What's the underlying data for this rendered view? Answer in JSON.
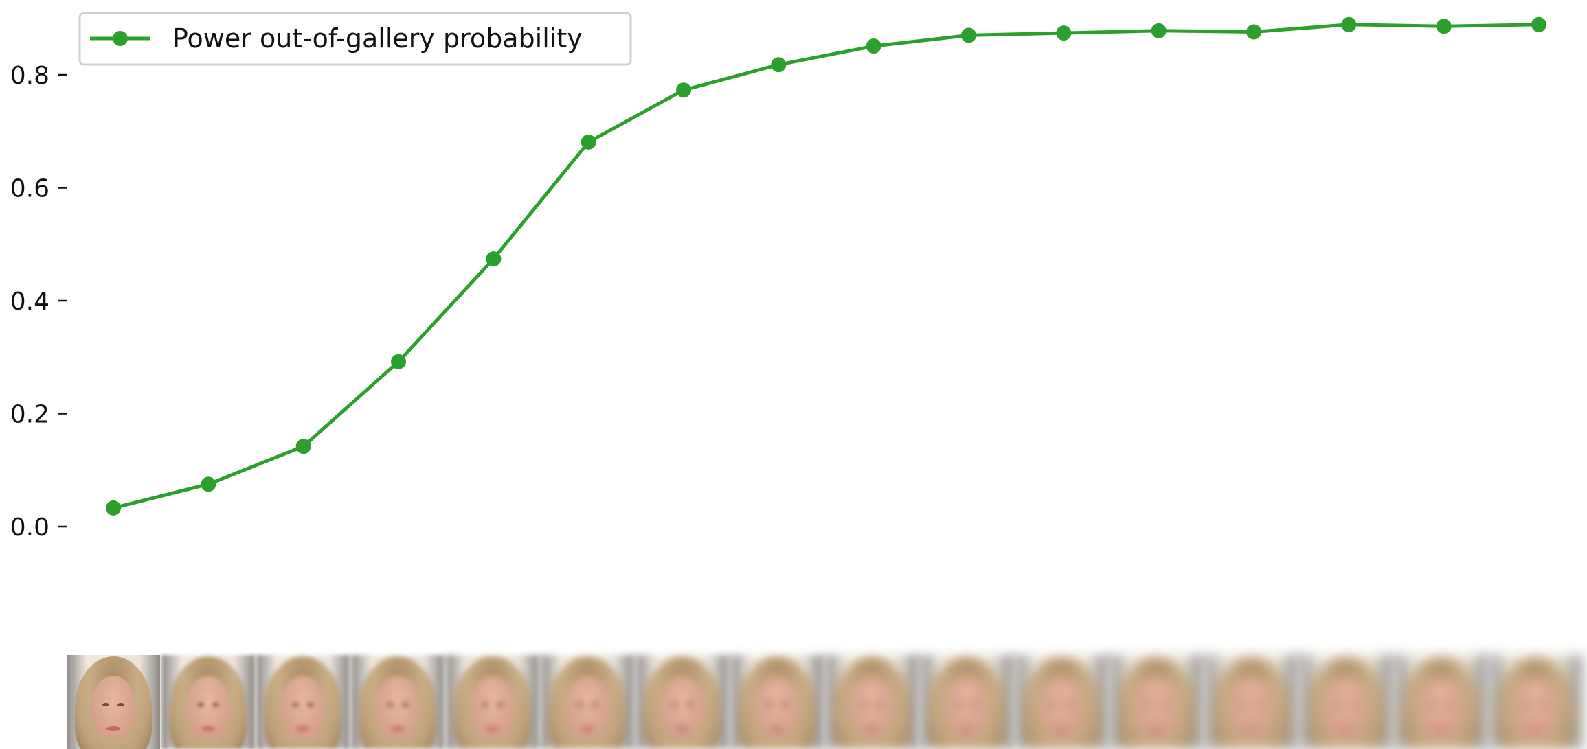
{
  "chart_data": {
    "type": "line",
    "title": "",
    "xlabel": "",
    "ylabel": "",
    "ylim": [
      -0.06,
      0.9
    ],
    "yticks": [
      0.0,
      0.2,
      0.4,
      0.6,
      0.8
    ],
    "ytick_labels": [
      "0.0",
      "0.2",
      "0.4",
      "0.6",
      "0.8"
    ],
    "x": [
      1,
      2,
      3,
      4,
      5,
      6,
      7,
      8,
      9,
      10,
      11,
      12,
      13,
      14,
      15,
      16
    ],
    "series": [
      {
        "name": "Power out-of-gallery probability",
        "color": "#2ca02c",
        "marker": "circle",
        "values": [
          0.033,
          0.075,
          0.142,
          0.292,
          0.474,
          0.681,
          0.773,
          0.818,
          0.851,
          0.87,
          0.874,
          0.878,
          0.876,
          0.889,
          0.886,
          0.889
        ]
      }
    ],
    "legend_position": "top-left",
    "grid": false,
    "x_axis_images": {
      "count": 16,
      "description_icon": "face-thumbnail-icon"
    }
  }
}
